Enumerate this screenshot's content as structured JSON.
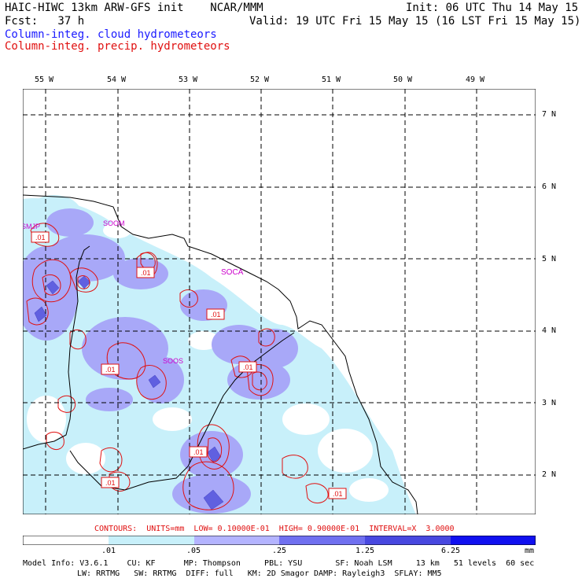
{
  "header": {
    "line1_left": "HAIC-HIWC 13km ARW-GFS init    NCAR/MMM",
    "line1_right": "Init: 06 UTC Thu 14 May 15",
    "line2_left": "Fcst:   37 h",
    "line2_right": "Valid: 19 UTC Fri 15 May 15 (16 LST Fri 15 May 15)",
    "legend_blue": "Column-integ. cloud hydrometeors",
    "legend_red": "Column-integ. precip. hydrometeors"
  },
  "axes": {
    "lon_labels": [
      "55 W",
      "54 W",
      "53 W",
      "52 W",
      "51 W",
      "50 W",
      "49 W"
    ],
    "lat_labels": [
      "7 N",
      "6 N",
      "5 N",
      "4 N",
      "3 N",
      "2 N"
    ]
  },
  "stations": [
    "SMJP",
    "SOOM",
    "SOCA",
    "SOOS"
  ],
  "contour_labels": [
    ".01",
    ".01",
    ".01",
    ".01",
    ".01",
    ".01",
    ".01",
    ".01"
  ],
  "contours_info": "CONTOURS:  UNITS=mm  LOW= 0.10000E-01  HIGH= 0.90000E-01  INTERVAL=X  3.0000",
  "colorbar": {
    "ticks": [
      ".01",
      ".05",
      ".25",
      "1.25",
      "6.25"
    ],
    "unit": "mm",
    "colors": [
      "#ffffff",
      "#c8f0fa",
      "#b4b4ff",
      "#7070f0",
      "#4848e0",
      "#1010f0"
    ]
  },
  "colors": {
    "cloud_light": "#c8f0fa",
    "cloud_mid": "#a8a8f8",
    "cloud_dark": "#6060e0",
    "contour": "#e01010",
    "station": "#cc00cc"
  },
  "model_info": {
    "line1": "Model Info: V3.6.1    CU: KF      MP: Thompson     PBL: YSU       SF: Noah LSM     13 km   51 levels  60 sec",
    "line2": "LW: RRTMG   SW: RRTMG  DIFF: full   KM: 2D Smagor DAMP: Rayleigh3  SFLAY: MM5"
  }
}
